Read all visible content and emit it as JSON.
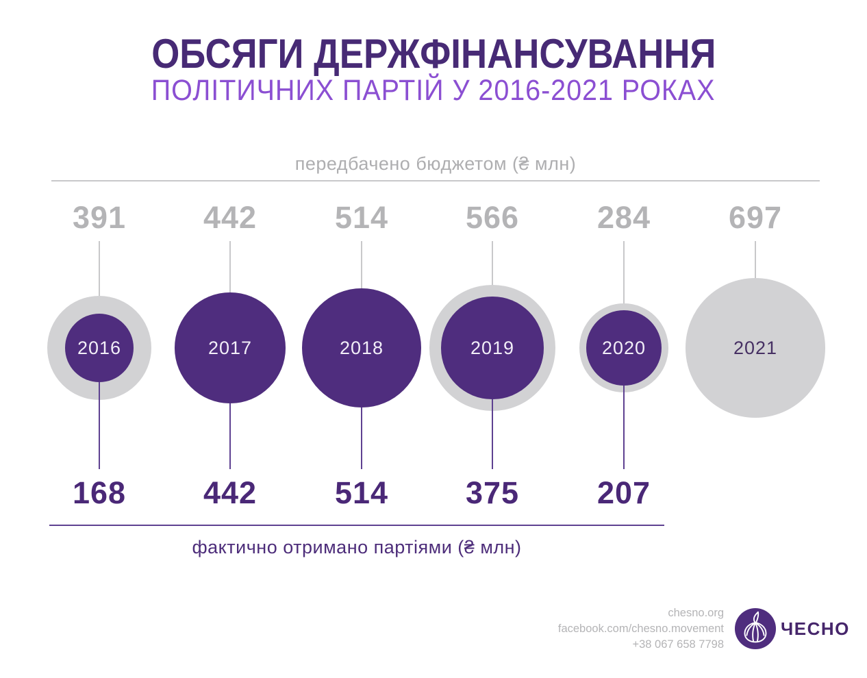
{
  "header": {
    "title": "ОБСЯГИ ДЕРЖФІНАНСУВАННЯ",
    "subtitle": "ПОЛІТИЧНИХ ПАРТІЙ У 2016-2021 РОКАХ"
  },
  "chart_data": {
    "type": "bubble",
    "categories": [
      "2016",
      "2017",
      "2018",
      "2019",
      "2020",
      "2021"
    ],
    "series": [
      {
        "name": "передбачено бюджетом (₴ млн)",
        "values": [
          391,
          442,
          514,
          566,
          284,
          697
        ]
      },
      {
        "name": "фактично отримано партіями (₴ млн)",
        "values": [
          168,
          442,
          514,
          375,
          207,
          null
        ]
      }
    ],
    "title": "ОБСЯГИ ДЕРЖФІНАНСУВАННЯ ПОЛІТИЧНИХ ПАРТІЙ У 2016-2021 РОКАХ",
    "unit": "₴ млн",
    "layout_hint": "bubble area proportional to value; gray = budgeted, purple = actually received; budgeted labels above, received labels below"
  },
  "colors": {
    "title_purple": "#472a75",
    "subtitle_violet": "#8b4fd2",
    "bubble_purple": "#4f2d7e",
    "bubble_gray": "#d2d2d4",
    "gray_text": "#b4b4b6",
    "dark_value_text": "#4a2877",
    "purple_line": "#5e4191",
    "gray_line": "#c8c8ca"
  },
  "footer": {
    "website": "chesno.org",
    "facebook": "facebook.com/chesno.movement",
    "phone": "+38 067 658 7798",
    "brand": "ЧЕСНО",
    "logo_icon": "garlic-icon"
  }
}
